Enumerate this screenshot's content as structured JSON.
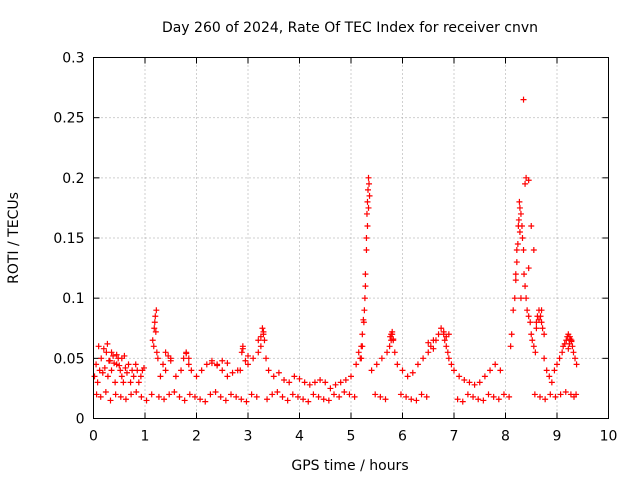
{
  "chart_data": {
    "type": "scatter",
    "title": "Day 260 of 2024, Rate Of TEC Index for receiver cnvn",
    "xlabel": "GPS time / hours",
    "ylabel": "ROTI / TECUs",
    "xlim": [
      0,
      10
    ],
    "ylim": [
      0,
      0.3
    ],
    "xticks": [
      0,
      1,
      2,
      3,
      4,
      5,
      6,
      7,
      8,
      9,
      10
    ],
    "xtick_labels": [
      "0",
      "1",
      "2",
      "3",
      "4",
      "5",
      "6",
      "7",
      "8",
      "9",
      "10"
    ],
    "yticks": [
      0,
      0.05,
      0.1,
      0.15,
      0.2,
      0.25,
      0.3
    ],
    "ytick_labels": [
      "0",
      "0.05",
      "0.1",
      "0.15",
      "0.2",
      "0.25",
      "0.3"
    ],
    "grid": true,
    "marker": "+",
    "marker_color": "#ff0000",
    "series": [
      {
        "name": "ROTI",
        "x": [
          0.02,
          0.05,
          0.08,
          0.12,
          0.15,
          0.18,
          0.22,
          0.25,
          0.28,
          0.32,
          0.35,
          0.38,
          0.42,
          0.45,
          0.48,
          0.52,
          0.55,
          0.58,
          0.62,
          0.65,
          0.68,
          0.72,
          0.75,
          0.78,
          0.82,
          0.85,
          0.88,
          0.92,
          0.95,
          0.98,
          0.1,
          0.2,
          0.27,
          0.35,
          0.45,
          0.55,
          0.6,
          0.3,
          0.4,
          0.5,
          1.15,
          1.18,
          1.2,
          1.22,
          1.19,
          1.21,
          1.17,
          1.23,
          1.25,
          1.3,
          1.35,
          1.4,
          1.5,
          1.6,
          1.7,
          1.75,
          1.8,
          1.85,
          1.9,
          2.0,
          2.1,
          2.2,
          2.3,
          2.4,
          2.5,
          2.6,
          2.7,
          2.8,
          1.4,
          1.45,
          1.5,
          1.8,
          1.85,
          2.3,
          2.4,
          2.5,
          2.6,
          2.85,
          2.88,
          2.9,
          2.95,
          3.0,
          3.1,
          3.2,
          3.25,
          3.28,
          3.3,
          3.32,
          3.35,
          3.4,
          3.5,
          3.6,
          3.7,
          3.8,
          3.9,
          4.0,
          4.1,
          4.2,
          4.3,
          4.4,
          4.5,
          4.6,
          4.7,
          4.8,
          4.9,
          5.0,
          3.2,
          3.25,
          3.3,
          2.9,
          3.0,
          5.1,
          5.15,
          5.2,
          5.22,
          5.25,
          5.27,
          5.28,
          5.3,
          5.31,
          5.32,
          5.33,
          5.34,
          5.35,
          5.36,
          5.3,
          5.28,
          5.26,
          5.24,
          5.22,
          5.2,
          5.18,
          5.32,
          5.34,
          5.4,
          5.5,
          5.6,
          5.7,
          5.75,
          5.78,
          5.8,
          5.82,
          5.85,
          5.9,
          6.0,
          6.1,
          6.2,
          6.3,
          6.4,
          6.5,
          6.55,
          6.6,
          6.65,
          6.7,
          6.75,
          6.8,
          6.82,
          6.85,
          6.88,
          6.9,
          6.95,
          7.0,
          7.1,
          7.2,
          7.3,
          7.4,
          7.5,
          7.6,
          7.7,
          7.8,
          7.9,
          5.76,
          5.78,
          5.8,
          5.82,
          6.6,
          6.8,
          6.85,
          6.9,
          6.5,
          8.1,
          8.12,
          8.15,
          8.18,
          8.2,
          8.22,
          8.25,
          8.27,
          8.28,
          8.3,
          8.32,
          8.33,
          8.35,
          8.36,
          8.38,
          8.4,
          8.42,
          8.45,
          8.48,
          8.5,
          8.52,
          8.55,
          8.58,
          8.6,
          8.62,
          8.65,
          8.68,
          8.7,
          8.72,
          8.75,
          8.2,
          8.22,
          8.24,
          8.26,
          8.28,
          8.3,
          8.4,
          8.45,
          8.5,
          8.55,
          8.35,
          8.38,
          8.45,
          8.6,
          8.65,
          8.7,
          8.75,
          8.8,
          8.85,
          8.9,
          8.95,
          9.0,
          9.05,
          9.1,
          9.12,
          9.15,
          9.18,
          9.2,
          9.22,
          9.25,
          9.28,
          9.3,
          9.32,
          9.35,
          9.38,
          9.22,
          9.24,
          9.26,
          9.28,
          0.06,
          0.14,
          0.24,
          0.33,
          0.43,
          0.53,
          0.63,
          0.73,
          0.83,
          0.93,
          1.03,
          1.13,
          1.27,
          1.37,
          1.47,
          1.57,
          1.67,
          1.77,
          1.87,
          1.97,
          2.07,
          2.17,
          2.27,
          2.37,
          2.47,
          2.57,
          2.67,
          2.77,
          2.87,
          2.97,
          3.07,
          3.17,
          3.37,
          3.47,
          3.57,
          3.67,
          3.77,
          3.87,
          3.97,
          4.07,
          4.17,
          4.27,
          4.37,
          4.47,
          4.57,
          4.67,
          4.77,
          4.87,
          4.97,
          5.07,
          5.47,
          5.57,
          5.67,
          5.97,
          6.07,
          6.17,
          6.27,
          6.37,
          6.47,
          7.07,
          7.17,
          7.27,
          7.37,
          7.47,
          7.57,
          7.67,
          7.77,
          7.87,
          7.97,
          8.07,
          8.57,
          8.67,
          8.77,
          8.87,
          8.97,
          9.07,
          9.17,
          9.27,
          9.33,
          9.37
        ],
        "y": [
          0.035,
          0.045,
          0.03,
          0.04,
          0.05,
          0.038,
          0.042,
          0.055,
          0.035,
          0.048,
          0.04,
          0.052,
          0.03,
          0.045,
          0.05,
          0.04,
          0.035,
          0.03,
          0.042,
          0.038,
          0.045,
          0.03,
          0.04,
          0.035,
          0.045,
          0.04,
          0.03,
          0.035,
          0.04,
          0.042,
          0.06,
          0.058,
          0.062,
          0.055,
          0.053,
          0.05,
          0.052,
          0.048,
          0.046,
          0.044,
          0.065,
          0.075,
          0.085,
          0.09,
          0.08,
          0.072,
          0.06,
          0.055,
          0.05,
          0.035,
          0.045,
          0.04,
          0.048,
          0.035,
          0.04,
          0.05,
          0.055,
          0.045,
          0.04,
          0.035,
          0.04,
          0.045,
          0.048,
          0.045,
          0.04,
          0.035,
          0.038,
          0.04,
          0.055,
          0.052,
          0.05,
          0.054,
          0.05,
          0.046,
          0.044,
          0.048,
          0.046,
          0.04,
          0.055,
          0.06,
          0.048,
          0.045,
          0.05,
          0.055,
          0.06,
          0.075,
          0.07,
          0.065,
          0.05,
          0.04,
          0.035,
          0.038,
          0.032,
          0.03,
          0.035,
          0.033,
          0.03,
          0.028,
          0.03,
          0.032,
          0.03,
          0.025,
          0.028,
          0.03,
          0.032,
          0.035,
          0.065,
          0.068,
          0.072,
          0.058,
          0.052,
          0.045,
          0.055,
          0.05,
          0.06,
          0.08,
          0.1,
          0.12,
          0.15,
          0.17,
          0.18,
          0.19,
          0.2,
          0.195,
          0.185,
          0.14,
          0.11,
          0.09,
          0.082,
          0.07,
          0.06,
          0.05,
          0.16,
          0.175,
          0.04,
          0.045,
          0.05,
          0.055,
          0.06,
          0.065,
          0.07,
          0.065,
          0.055,
          0.045,
          0.04,
          0.035,
          0.038,
          0.045,
          0.05,
          0.055,
          0.06,
          0.058,
          0.065,
          0.07,
          0.075,
          0.07,
          0.065,
          0.06,
          0.055,
          0.05,
          0.045,
          0.04,
          0.035,
          0.032,
          0.03,
          0.028,
          0.03,
          0.035,
          0.04,
          0.045,
          0.04,
          0.068,
          0.07,
          0.072,
          0.066,
          0.065,
          0.072,
          0.068,
          0.07,
          0.063,
          0.06,
          0.07,
          0.09,
          0.1,
          0.12,
          0.14,
          0.16,
          0.18,
          0.175,
          0.17,
          0.16,
          0.15,
          0.14,
          0.12,
          0.11,
          0.1,
          0.09,
          0.085,
          0.08,
          0.07,
          0.065,
          0.06,
          0.055,
          0.08,
          0.085,
          0.09,
          0.085,
          0.08,
          0.075,
          0.07,
          0.115,
          0.13,
          0.145,
          0.165,
          0.155,
          0.1,
          0.2,
          0.198,
          0.16,
          0.14,
          0.265,
          0.195,
          0.125,
          0.075,
          0.082,
          0.09,
          0.05,
          0.04,
          0.035,
          0.03,
          0.04,
          0.045,
          0.05,
          0.055,
          0.06,
          0.062,
          0.065,
          0.068,
          0.07,
          0.068,
          0.065,
          0.06,
          0.055,
          0.05,
          0.045,
          0.058,
          0.062,
          0.066,
          0.064,
          0.02,
          0.018,
          0.022,
          0.015,
          0.02,
          0.018,
          0.016,
          0.02,
          0.022,
          0.018,
          0.015,
          0.02,
          0.018,
          0.016,
          0.02,
          0.022,
          0.018,
          0.015,
          0.02,
          0.018,
          0.016,
          0.014,
          0.02,
          0.022,
          0.018,
          0.015,
          0.02,
          0.018,
          0.016,
          0.014,
          0.02,
          0.018,
          0.016,
          0.02,
          0.022,
          0.018,
          0.015,
          0.02,
          0.018,
          0.016,
          0.014,
          0.02,
          0.018,
          0.016,
          0.015,
          0.02,
          0.018,
          0.022,
          0.02,
          0.018,
          0.02,
          0.018,
          0.016,
          0.02,
          0.018,
          0.016,
          0.015,
          0.02,
          0.018,
          0.016,
          0.014,
          0.02,
          0.018,
          0.016,
          0.015,
          0.02,
          0.018,
          0.016,
          0.02,
          0.018,
          0.02,
          0.018,
          0.016,
          0.02,
          0.018,
          0.02,
          0.022,
          0.02,
          0.018,
          0.02
        ]
      }
    ]
  }
}
